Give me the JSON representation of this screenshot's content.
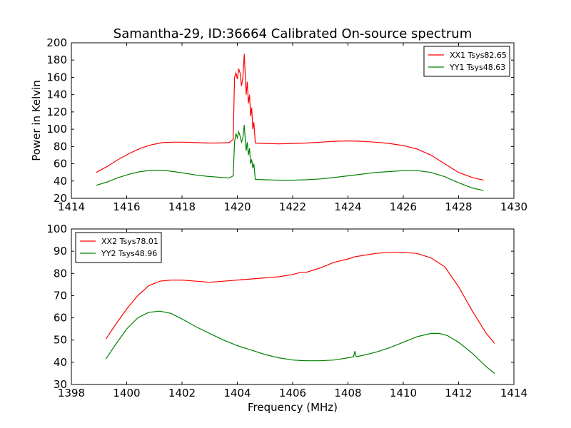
{
  "figure": {
    "title": "Samantha-29, ID:36664 Calibrated On-source spectrum"
  },
  "chart_data": [
    {
      "type": "line",
      "title": "Samantha-29, ID:36664 Calibrated On-source spectrum",
      "xlabel": "",
      "ylabel": "Power in Kelvin",
      "xlim": [
        1414,
        1430
      ],
      "ylim": [
        20,
        200
      ],
      "xticks": [
        1414,
        1416,
        1418,
        1420,
        1422,
        1424,
        1426,
        1428,
        1430
      ],
      "yticks": [
        20,
        40,
        60,
        80,
        100,
        120,
        140,
        160,
        180,
        200
      ],
      "legend_position": "top-right",
      "grid": false,
      "series": [
        {
          "name": "XX1 Tsys82.65",
          "color": "#ff0000",
          "x": [
            1414.9,
            1415.3,
            1415.7,
            1416.1,
            1416.5,
            1416.9,
            1417.3,
            1417.7,
            1418.1,
            1418.5,
            1418.9,
            1419.3,
            1419.7,
            1419.85,
            1419.9,
            1419.95,
            1420.0,
            1420.05,
            1420.1,
            1420.15,
            1420.2,
            1420.25,
            1420.28,
            1420.32,
            1420.36,
            1420.4,
            1420.44,
            1420.48,
            1420.52,
            1420.56,
            1420.6,
            1420.65,
            1421.0,
            1421.5,
            1422.0,
            1422.5,
            1423.0,
            1423.5,
            1424.0,
            1424.5,
            1425.0,
            1425.5,
            1426.0,
            1426.5,
            1427.0,
            1427.5,
            1428.0,
            1428.5,
            1428.9
          ],
          "y": [
            50,
            57,
            65,
            72,
            78,
            82,
            84.5,
            85,
            85,
            84.5,
            84,
            84,
            84.5,
            88,
            160,
            165,
            158,
            170,
            165,
            150,
            160,
            187,
            168,
            140,
            155,
            130,
            140,
            115,
            125,
            100,
            108,
            84,
            83.5,
            83,
            83.5,
            84,
            85,
            86,
            86.5,
            86,
            85,
            83.5,
            81,
            77,
            70,
            60,
            50,
            44,
            41
          ]
        },
        {
          "name": "YY1 Tsys48.63",
          "color": "#008000",
          "x": [
            1414.9,
            1415.3,
            1415.7,
            1416.1,
            1416.5,
            1416.9,
            1417.3,
            1417.7,
            1418.1,
            1418.5,
            1418.9,
            1419.3,
            1419.7,
            1419.85,
            1419.9,
            1419.95,
            1420.0,
            1420.05,
            1420.1,
            1420.15,
            1420.2,
            1420.25,
            1420.28,
            1420.32,
            1420.36,
            1420.4,
            1420.44,
            1420.48,
            1420.52,
            1420.56,
            1420.6,
            1420.65,
            1421.0,
            1421.5,
            1422.0,
            1422.5,
            1423.0,
            1423.5,
            1424.0,
            1424.5,
            1425.0,
            1425.5,
            1426.0,
            1426.5,
            1427.0,
            1427.5,
            1428.0,
            1428.5,
            1428.9
          ],
          "y": [
            35,
            39,
            44,
            48,
            51,
            52.5,
            52.5,
            51,
            49,
            47,
            45.5,
            44.5,
            43.5,
            46,
            85,
            95,
            90,
            97,
            92,
            85,
            90,
            105,
            92,
            75,
            85,
            70,
            78,
            60,
            65,
            55,
            60,
            42,
            41.5,
            41,
            41,
            41.5,
            42.5,
            44,
            46,
            48,
            50,
            51,
            52,
            52,
            50,
            45,
            38,
            32,
            29
          ]
        }
      ]
    },
    {
      "type": "line",
      "title": "",
      "xlabel": "Frequency (MHz)",
      "ylabel": "",
      "xlim": [
        1398,
        1414
      ],
      "ylim": [
        30,
        100
      ],
      "xticks": [
        1398,
        1400,
        1402,
        1404,
        1406,
        1408,
        1410,
        1412,
        1414
      ],
      "yticks": [
        30,
        40,
        50,
        60,
        70,
        80,
        90,
        100
      ],
      "legend_position": "top-left",
      "grid": false,
      "series": [
        {
          "name": "XX2 Tsys78.01",
          "color": "#ff0000",
          "x": [
            1399.25,
            1399.6,
            1400.0,
            1400.4,
            1400.8,
            1401.2,
            1401.6,
            1402.0,
            1402.5,
            1403.0,
            1403.5,
            1404.0,
            1404.5,
            1405.0,
            1405.5,
            1406.0,
            1406.3,
            1406.5,
            1407.0,
            1407.5,
            1408.0,
            1408.25,
            1408.5,
            1409.0,
            1409.5,
            1410.0,
            1410.5,
            1411.0,
            1411.5,
            1412.0,
            1412.5,
            1413.0,
            1413.3
          ],
          "y": [
            50.5,
            57,
            64,
            70,
            74.5,
            76.5,
            77,
            77,
            76.5,
            76,
            76.5,
            77,
            77.5,
            78,
            78.5,
            79.5,
            80.5,
            80.5,
            82.5,
            85,
            86.5,
            87.5,
            88,
            89,
            89.5,
            89.5,
            89,
            87,
            83,
            74,
            63,
            53,
            48.5
          ]
        },
        {
          "name": "YY2 Tsys48.96",
          "color": "#008000",
          "x": [
            1399.25,
            1399.6,
            1400.0,
            1400.4,
            1400.8,
            1401.2,
            1401.6,
            1402.0,
            1402.5,
            1403.0,
            1403.5,
            1404.0,
            1404.5,
            1405.0,
            1405.5,
            1406.0,
            1406.3,
            1406.5,
            1407.0,
            1407.5,
            1408.0,
            1408.2,
            1408.25,
            1408.3,
            1408.5,
            1409.0,
            1409.5,
            1410.0,
            1410.5,
            1411.0,
            1411.3,
            1411.6,
            1412.0,
            1412.5,
            1413.0,
            1413.3
          ],
          "y": [
            41.5,
            48,
            55,
            60,
            62.5,
            63,
            62,
            59.5,
            56,
            53,
            50,
            47.5,
            45.5,
            43.5,
            42,
            41,
            40.8,
            40.7,
            40.7,
            41,
            42,
            42.5,
            45,
            42.5,
            43,
            44.5,
            46.5,
            49,
            51.5,
            53,
            53,
            52,
            49,
            44,
            38,
            35
          ]
        }
      ]
    }
  ]
}
